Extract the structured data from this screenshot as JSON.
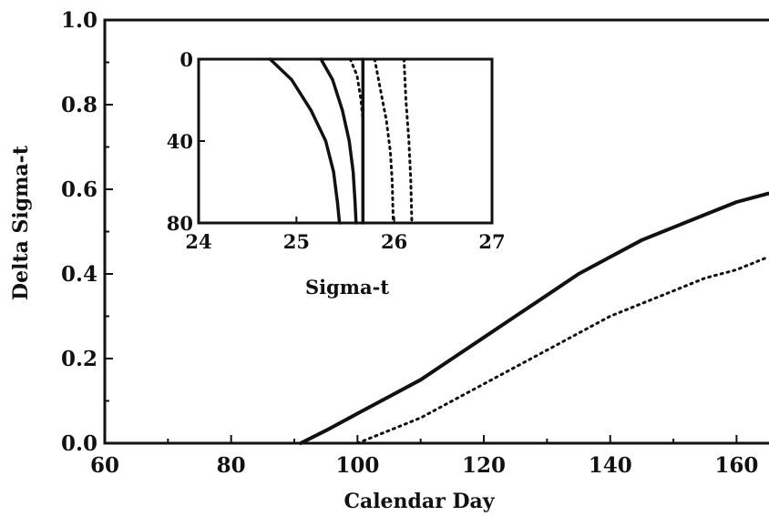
{
  "chart_data": [
    {
      "type": "line",
      "title": "",
      "xlabel": "Calendar Day",
      "ylabel": "Delta Sigma-t",
      "xlim": [
        60,
        166
      ],
      "ylim": [
        0.0,
        1.0
      ],
      "xticks": [
        60,
        80,
        100,
        120,
        140,
        160
      ],
      "xtick_labels": [
        "60",
        "80",
        "100",
        "120",
        "140",
        "160"
      ],
      "yticks": [
        0.0,
        0.2,
        0.4,
        0.6,
        0.8,
        1.0
      ],
      "ytick_labels": [
        "0.0",
        "0.2",
        "0.4",
        "0.6",
        "0.8",
        "1.0"
      ],
      "grid": false,
      "series": [
        {
          "style": "solid",
          "color": "#111111",
          "x": [
            91,
            95,
            100,
            105,
            110,
            115,
            120,
            125,
            130,
            135,
            140,
            145,
            150,
            155,
            160,
            165
          ],
          "y": [
            0.0,
            0.03,
            0.07,
            0.11,
            0.15,
            0.2,
            0.25,
            0.3,
            0.35,
            0.4,
            0.44,
            0.48,
            0.51,
            0.54,
            0.57,
            0.59
          ]
        },
        {
          "style": "dotted",
          "color": "#111111",
          "x": [
            100,
            105,
            110,
            115,
            120,
            125,
            130,
            135,
            140,
            145,
            150,
            155,
            160,
            165
          ],
          "y": [
            0.0,
            0.03,
            0.06,
            0.1,
            0.14,
            0.18,
            0.22,
            0.26,
            0.3,
            0.33,
            0.36,
            0.39,
            0.41,
            0.44
          ]
        }
      ]
    },
    {
      "type": "line",
      "title": "",
      "xlabel": "Sigma-t",
      "ylabel": "",
      "xlim": [
        24,
        27
      ],
      "ylim": [
        80,
        0
      ],
      "xticks": [
        24,
        25,
        26,
        27
      ],
      "xtick_labels": [
        "24",
        "25",
        "26",
        "27"
      ],
      "yticks": [
        0,
        40,
        80
      ],
      "ytick_labels": [
        "0",
        "40",
        "80"
      ],
      "grid": false,
      "series": [
        {
          "style": "solid",
          "color": "#111111",
          "x": [
            24.73,
            24.95,
            25.15,
            25.3,
            25.38,
            25.42,
            25.44
          ],
          "y": [
            0,
            10,
            25,
            40,
            55,
            70,
            80
          ]
        },
        {
          "style": "solid",
          "color": "#111111",
          "x": [
            25.25,
            25.37,
            25.47,
            25.54,
            25.58,
            25.6,
            25.61
          ],
          "y": [
            0,
            10,
            25,
            40,
            55,
            70,
            80
          ]
        },
        {
          "style": "solid",
          "color": "#111111",
          "x": [
            25.68,
            25.68
          ],
          "y": [
            0,
            80
          ]
        },
        {
          "style": "dotted",
          "color": "#111111",
          "x": [
            25.55,
            25.62,
            25.66,
            25.68
          ],
          "y": [
            0,
            8,
            20,
            30
          ]
        },
        {
          "style": "dotted",
          "color": "#111111",
          "x": [
            25.8,
            25.86,
            25.92,
            25.96,
            25.98,
            25.99
          ],
          "y": [
            0,
            15,
            30,
            45,
            60,
            80
          ]
        },
        {
          "style": "dotted",
          "color": "#111111",
          "x": [
            26.1,
            26.12,
            26.15,
            26.17,
            26.18
          ],
          "y": [
            0,
            20,
            40,
            60,
            80
          ]
        }
      ]
    }
  ]
}
